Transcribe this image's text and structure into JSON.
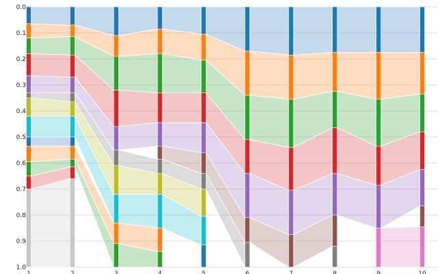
{
  "chart_data": {
    "type": "alluvial",
    "title": "",
    "xlabel": "",
    "ylabel": "",
    "ylim": [
      0,
      1
    ],
    "y_inverted": true,
    "grid": true,
    "yticks": [
      "0.0",
      "0.1",
      "0.2",
      "0.3",
      "0.4",
      "0.5",
      "0.6",
      "0.7",
      "0.8",
      "0.9",
      "1.0"
    ],
    "stages": [
      "1",
      "2",
      "3",
      "4",
      "5",
      "6",
      "7",
      "8",
      "9",
      "10"
    ],
    "palette": {
      "blue": "#1f77b4",
      "orange": "#ff7f0e",
      "green": "#2ca02c",
      "red": "#d62728",
      "purple": "#9467bd",
      "brown": "#8c564b",
      "pink": "#e377c2",
      "gray": "#7f7f7f",
      "olive": "#bcbd22",
      "cyan": "#17becf",
      "lightgray": "#c7c7c7"
    },
    "columns": [
      [
        [
          "blue",
          0.0,
          0.065
        ],
        [
          "orange",
          0.065,
          0.12
        ],
        [
          "green",
          0.12,
          0.18
        ],
        [
          "red",
          0.18,
          0.265
        ],
        [
          "purple",
          0.265,
          0.33
        ],
        [
          "gray",
          0.33,
          0.35
        ],
        [
          "olive",
          0.35,
          0.42
        ],
        [
          "cyan",
          0.42,
          0.5
        ],
        [
          "blue",
          0.5,
          0.535
        ],
        [
          "orange",
          0.535,
          0.595
        ],
        [
          "green",
          0.595,
          0.65
        ],
        [
          "red",
          0.65,
          0.7
        ],
        [
          "lightgray",
          0.7,
          1.0
        ]
      ],
      [
        [
          "blue",
          0.0,
          0.07
        ],
        [
          "orange",
          0.07,
          0.115
        ],
        [
          "green",
          0.115,
          0.185
        ],
        [
          "red",
          0.185,
          0.27
        ],
        [
          "purple",
          0.27,
          0.33
        ],
        [
          "gray",
          0.33,
          0.365
        ],
        [
          "olive",
          0.365,
          0.42
        ],
        [
          "cyan",
          0.42,
          0.5
        ],
        [
          "blue",
          0.5,
          0.535
        ],
        [
          "orange",
          0.535,
          0.585
        ],
        [
          "green",
          0.585,
          0.615
        ],
        [
          "red",
          0.615,
          0.66
        ],
        [
          "lightgray",
          0.66,
          1.0
        ]
      ],
      [
        [
          "blue",
          0.0,
          0.11
        ],
        [
          "orange",
          0.11,
          0.19
        ],
        [
          "green",
          0.19,
          0.32
        ],
        [
          "red",
          0.32,
          0.46
        ],
        [
          "purple",
          0.46,
          0.55
        ],
        [
          "gray",
          0.55,
          0.61
        ],
        [
          "olive",
          0.61,
          0.72
        ],
        [
          "cyan",
          0.72,
          0.83
        ],
        [
          "orange",
          0.83,
          0.91
        ],
        [
          "green",
          0.91,
          1.0
        ]
      ],
      [
        [
          "blue",
          0.0,
          0.085
        ],
        [
          "orange",
          0.085,
          0.18
        ],
        [
          "green",
          0.18,
          0.33
        ],
        [
          "red",
          0.33,
          0.445
        ],
        [
          "purple",
          0.445,
          0.535
        ],
        [
          "brown",
          0.535,
          0.585
        ],
        [
          "gray",
          0.585,
          0.64
        ],
        [
          "olive",
          0.64,
          0.72
        ],
        [
          "cyan",
          0.72,
          0.85
        ],
        [
          "orange",
          0.85,
          0.94
        ],
        [
          "green",
          0.94,
          1.0
        ]
      ],
      [
        [
          "blue",
          0.0,
          0.105
        ],
        [
          "orange",
          0.105,
          0.205
        ],
        [
          "green",
          0.205,
          0.33
        ],
        [
          "red",
          0.33,
          0.445
        ],
        [
          "purple",
          0.445,
          0.56
        ],
        [
          "brown",
          0.56,
          0.64
        ],
        [
          "gray",
          0.64,
          0.7
        ],
        [
          "olive",
          0.7,
          0.805
        ],
        [
          "cyan",
          0.805,
          0.915
        ],
        [
          "blue",
          0.915,
          1.0
        ]
      ],
      [
        [
          "blue",
          0.0,
          0.17
        ],
        [
          "orange",
          0.17,
          0.34
        ],
        [
          "green",
          0.34,
          0.51
        ],
        [
          "red",
          0.51,
          0.64
        ],
        [
          "purple",
          0.64,
          0.81
        ],
        [
          "brown",
          0.81,
          0.905
        ],
        [
          "gray",
          0.905,
          1.0
        ]
      ],
      [
        [
          "blue",
          0.0,
          0.185
        ],
        [
          "orange",
          0.185,
          0.355
        ],
        [
          "green",
          0.355,
          0.54
        ],
        [
          "red",
          0.54,
          0.705
        ],
        [
          "purple",
          0.705,
          0.875
        ],
        [
          "brown",
          0.875,
          1.0
        ]
      ],
      [
        [
          "blue",
          0.0,
          0.175
        ],
        [
          "orange",
          0.175,
          0.325
        ],
        [
          "green",
          0.325,
          0.465
        ],
        [
          "red",
          0.465,
          0.64
        ],
        [
          "purple",
          0.64,
          0.8
        ],
        [
          "brown",
          0.8,
          0.92
        ],
        [
          "gray",
          0.92,
          1.0
        ]
      ],
      [
        [
          "blue",
          0.0,
          0.175
        ],
        [
          "orange",
          0.175,
          0.355
        ],
        [
          "green",
          0.355,
          0.535
        ],
        [
          "red",
          0.535,
          0.685
        ],
        [
          "purple",
          0.685,
          0.85
        ],
        [
          "pink",
          0.85,
          1.0
        ]
      ],
      [
        [
          "blue",
          0.0,
          0.175
        ],
        [
          "orange",
          0.175,
          0.335
        ],
        [
          "green",
          0.335,
          0.48
        ],
        [
          "red",
          0.48,
          0.625
        ],
        [
          "purple",
          0.625,
          0.765
        ],
        [
          "brown",
          0.765,
          0.845
        ],
        [
          "pink",
          0.845,
          1.0
        ]
      ]
    ]
  }
}
